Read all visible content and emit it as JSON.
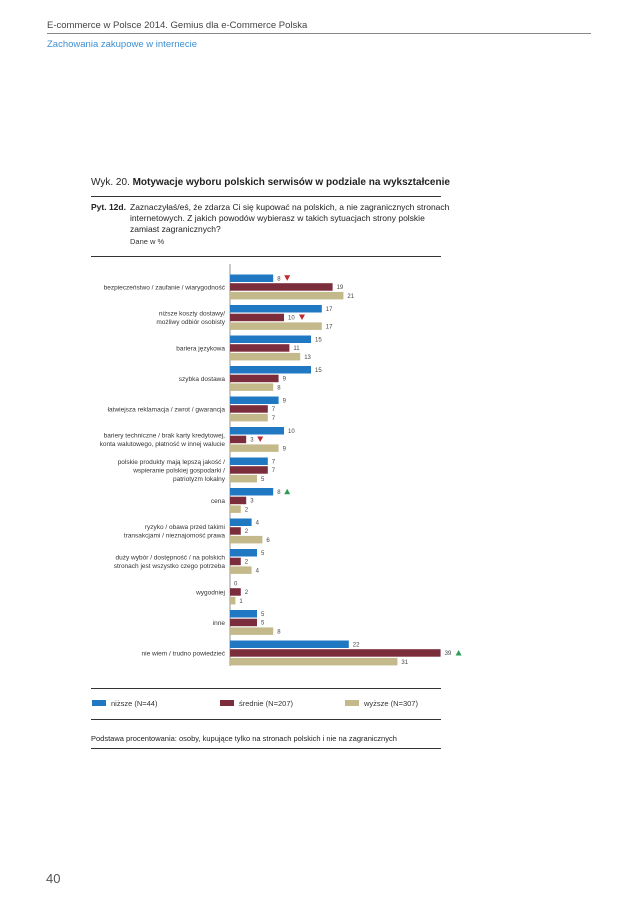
{
  "header": {
    "title": "E-commerce w Polsce 2014. Gemius dla e-Commerce Polska",
    "section": "Zachowania zakupowe w internecie"
  },
  "page_number": "40",
  "figure": {
    "label": "Wyk. 20.",
    "title": "Motywacje wyboru polskich serwisów w podziale na wykształcenie",
    "question_label": "Pyt. 12d.",
    "question_text": "Zaznaczyłaś/eś, że zdarza Ci się kupować na polskich, a nie zagranicznych stronach internetowych. Z jakich powodów wybierasz w takich sytuacjach strony polskie zamiast zagranicznych?",
    "note": "Dane w %",
    "footnote": "Podstawa procentowania: osoby, kupujące tylko na stronach polskich i nie na zagranicznych"
  },
  "colors": {
    "nizsze": "#1f78c1",
    "srednie": "#7b2d3c",
    "wyzsze": "#c4b98a",
    "down_marker": "#c0282f",
    "up_marker": "#2e9c57"
  },
  "chart_data": {
    "type": "bar",
    "orientation": "horizontal",
    "categories": [
      [
        "bezpieczeństwo / zaufanie / wiarygodność"
      ],
      [
        "niższe koszty dostawy/",
        "możliwy odbiór osobisty"
      ],
      [
        "bariera językowa"
      ],
      [
        "szybka dostawa"
      ],
      [
        "łatwiejsza reklamacja / zwrot / gwarancja"
      ],
      [
        "bariery techniczne / brak karty kredytowej,",
        "konta walutowego, płatność w innej walucie"
      ],
      [
        "polskie produkty mają lepszą jakość /",
        "wspieranie polskiej gospodarki /",
        "patriotyzm lokalny"
      ],
      [
        "cena"
      ],
      [
        "ryzyko / obawa przed takimi",
        "transakcjami / nieznajomość prawa"
      ],
      [
        "duży wybór / dostępność / na polskich",
        "stronach jest wszystko czego potrzeba"
      ],
      [
        "wygodniej"
      ],
      [
        "inne"
      ],
      [
        "nie wiem / trudno powiedzieć"
      ]
    ],
    "series": [
      {
        "name": "niższe (N=44)",
        "values": [
          8,
          17,
          15,
          15,
          9,
          10,
          7,
          8,
          4,
          5,
          0,
          5,
          22
        ]
      },
      {
        "name": "średnie (N=207)",
        "values": [
          19,
          10,
          11,
          9,
          7,
          3,
          7,
          3,
          2,
          2,
          2,
          5,
          39
        ]
      },
      {
        "name": "wyższe (N=307)",
        "values": [
          21,
          17,
          13,
          8,
          7,
          9,
          5,
          2,
          6,
          4,
          1,
          8,
          31
        ]
      }
    ],
    "markers": [
      {
        "category_index": 0,
        "series_index": 0,
        "direction": "down"
      },
      {
        "category_index": 1,
        "series_index": 1,
        "direction": "down"
      },
      {
        "category_index": 5,
        "series_index": 1,
        "direction": "down"
      },
      {
        "category_index": 7,
        "series_index": 0,
        "direction": "up"
      },
      {
        "category_index": 12,
        "series_index": 1,
        "direction": "up"
      }
    ],
    "xlim": [
      0,
      40
    ],
    "grid": false,
    "legend_position": "bottom"
  }
}
